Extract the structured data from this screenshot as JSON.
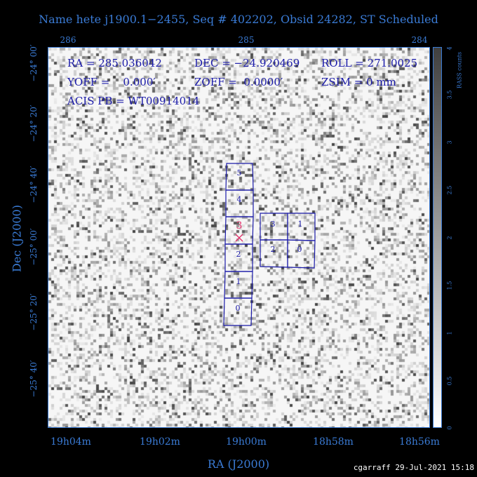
{
  "title": "Name hete j1900.1−2455, Seq # 402202, Obsid 24282, ST Scheduled",
  "top_ticks": [
    "286",
    "285",
    "284"
  ],
  "bottom_ticks": [
    "19h04m",
    "19h02m",
    "19h00m",
    "18h58m",
    "18h56m"
  ],
  "xlabel": "RA (J2000)",
  "ylabel": "Dec (J2000)",
  "left_ticks": [
    "−24° 00′",
    "−24° 20′",
    "−24° 40′",
    "−25° 00′",
    "−25° 20′",
    "−25° 40′"
  ],
  "info": {
    "ra": "RA = 285.036042",
    "dec": "DEC = −24.920469",
    "roll": "ROLL = 271.0025",
    "yoff": "YOFF =    0.000′",
    "zoff": "ZOFF =  0.0000′",
    "zsim": "ZSIM = 0 mm",
    "acis": "ACIS PB = WT00914014"
  },
  "chips_vertical": [
    "5",
    "4",
    "3",
    "2",
    "1",
    "0"
  ],
  "chips_square": [
    "3",
    "1",
    "2",
    "0"
  ],
  "aimpoint_label": "3",
  "colorbar": {
    "label": "RASS counts",
    "ticks": [
      "0",
      "0.5",
      "1",
      "1.5",
      "2",
      "2.5",
      "3",
      "3.5",
      "4"
    ]
  },
  "footer": "cgarraff 29-Jul-2021 15:18",
  "colors": {
    "axis": "#3a7bd5",
    "chip": "#1a1aa8",
    "aimpoint": "#e0306a"
  }
}
